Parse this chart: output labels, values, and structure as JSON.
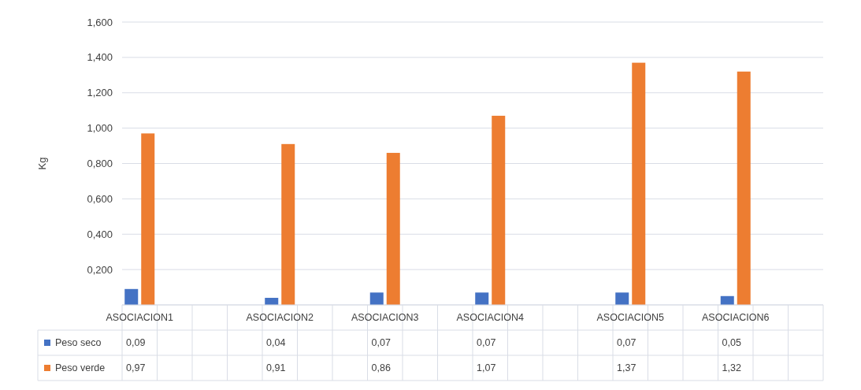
{
  "chart_data": {
    "type": "bar",
    "ylabel": "Kg",
    "categories": [
      "ASOCIACION1",
      null,
      null,
      null,
      "ASOCIACION2",
      null,
      null,
      "ASOCIACION3",
      null,
      null,
      "ASOCIACION4",
      null,
      null,
      null,
      "ASOCIACION5",
      null,
      null,
      "ASOCIACION6",
      null,
      null
    ],
    "series": [
      {
        "name": "Peso seco",
        "color": "#4472c4",
        "values": [
          0.09,
          null,
          null,
          null,
          0.04,
          null,
          null,
          0.07,
          null,
          null,
          0.07,
          null,
          null,
          null,
          0.07,
          null,
          null,
          0.05,
          null,
          null
        ],
        "value_labels": [
          "0,09",
          null,
          null,
          null,
          "0,04",
          null,
          null,
          "0,07",
          null,
          null,
          "0,07",
          null,
          null,
          null,
          "0,07",
          null,
          null,
          "0,05",
          null,
          null
        ]
      },
      {
        "name": "Peso verde",
        "color": "#ed7d31",
        "values": [
          0.97,
          null,
          null,
          null,
          0.91,
          null,
          null,
          0.86,
          null,
          null,
          1.07,
          null,
          null,
          null,
          1.37,
          null,
          null,
          1.32,
          null,
          null
        ],
        "value_labels": [
          "0,97",
          null,
          null,
          null,
          "0,91",
          null,
          null,
          "0,86",
          null,
          null,
          "1,07",
          null,
          null,
          null,
          "1,37",
          null,
          null,
          "1,32",
          null,
          null
        ]
      }
    ],
    "ylim": [
      0,
      1.6
    ],
    "yticks": [
      {
        "value": 0,
        "label": null
      },
      {
        "value": 0.2,
        "label": "0,200"
      },
      {
        "value": 0.4,
        "label": "0,400"
      },
      {
        "value": 0.6,
        "label": "0,600"
      },
      {
        "value": 0.8,
        "label": "0,800"
      },
      {
        "value": 1.0,
        "label": "1,000"
      },
      {
        "value": 1.2,
        "label": "1,200"
      },
      {
        "value": 1.4,
        "label": "1,400"
      },
      {
        "value": 1.6,
        "label": "1,600"
      }
    ],
    "grid": "y",
    "legend": "bottom"
  }
}
